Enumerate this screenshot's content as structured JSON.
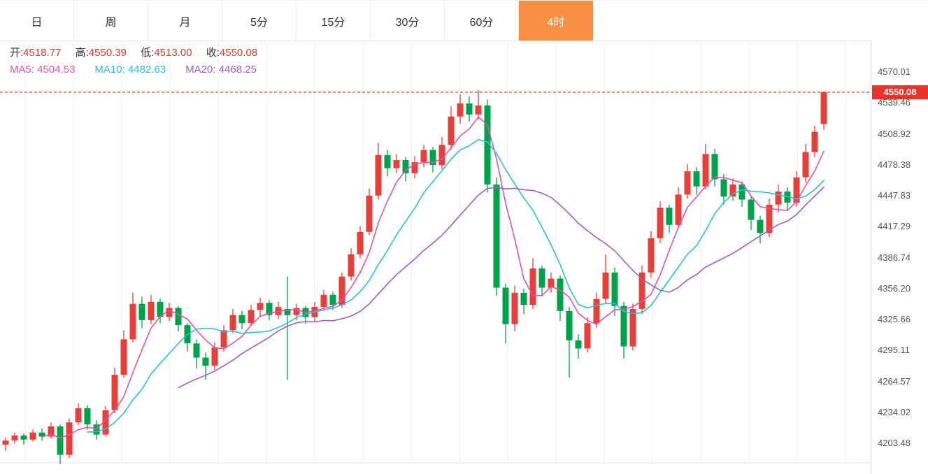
{
  "tabs": {
    "active_color": "#f78f44",
    "items": [
      {
        "label": "日",
        "active": false
      },
      {
        "label": "周",
        "active": false
      },
      {
        "label": "月",
        "active": false
      },
      {
        "label": "5分",
        "active": false
      },
      {
        "label": "15分",
        "active": false
      },
      {
        "label": "30分",
        "active": false
      },
      {
        "label": "60分",
        "active": false
      },
      {
        "label": "4时",
        "active": true
      }
    ]
  },
  "info": {
    "ohlc_value_color": "#e23b2e",
    "ohlc": [
      {
        "label": "开:",
        "value": "4518.77"
      },
      {
        "label": "高:",
        "value": "4550.39"
      },
      {
        "label": "低:",
        "value": "4513.00"
      },
      {
        "label": "收:",
        "value": "4550.08"
      }
    ],
    "ma": [
      {
        "label": "MA5:",
        "value": "4504.53",
        "color": "#e651a8"
      },
      {
        "label": "MA10:",
        "value": "4482.63",
        "color": "#2bbfd6"
      },
      {
        "label": "MA20:",
        "value": "4468.25",
        "color": "#9d5fc4"
      }
    ]
  },
  "axis": {
    "labels": [
      "4570.01",
      "4539.46",
      "4508.92",
      "4478.38",
      "4447.83",
      "4417.29",
      "4386.74",
      "4356.20",
      "4325.66",
      "4295.11",
      "4264.57",
      "4234.02",
      "4203.48"
    ]
  },
  "price_tag": {
    "value": "4550.08",
    "bg_color": "#e8352a"
  },
  "chart_data": {
    "type": "candlestick",
    "timeframe": "4时",
    "ylim": [
      4203.48,
      4570.01
    ],
    "y_ticks": [
      4570.01,
      4539.46,
      4508.92,
      4478.38,
      4447.83,
      4417.29,
      4386.74,
      4356.2,
      4325.66,
      4295.11,
      4264.57,
      4234.02,
      4203.48
    ],
    "grid": "vertical",
    "up_color": "#e7403a",
    "down_color": "#00a14b",
    "current_price": 4550.08,
    "current_price_line_color": "#e8352a",
    "last_candle": {
      "open": 4518.77,
      "high": 4550.39,
      "low": 4513.0,
      "close": 4550.08
    },
    "ma_series": [
      {
        "name": "MA5",
        "period": 5,
        "color": "#e651a8",
        "last_value": 4504.53
      },
      {
        "name": "MA10",
        "period": 10,
        "color": "#2bbfd6",
        "last_value": 4482.63
      },
      {
        "name": "MA20",
        "period": 20,
        "color": "#9d5fc4",
        "last_value": 4468.25
      }
    ],
    "candles_ohlc": [
      [
        4202,
        4209,
        4196,
        4206
      ],
      [
        4206,
        4214,
        4203,
        4211
      ],
      [
        4211,
        4213,
        4202,
        4207
      ],
      [
        4207,
        4217,
        4205,
        4214
      ],
      [
        4214,
        4218,
        4206,
        4210
      ],
      [
        4210,
        4224,
        4208,
        4220
      ],
      [
        4220,
        4222,
        4183,
        4192
      ],
      [
        4192,
        4228,
        4189,
        4224
      ],
      [
        4224,
        4243,
        4221,
        4238
      ],
      [
        4238,
        4241,
        4217,
        4222
      ],
      [
        4222,
        4226,
        4207,
        4212
      ],
      [
        4212,
        4240,
        4210,
        4236
      ],
      [
        4236,
        4278,
        4233,
        4271
      ],
      [
        4271,
        4315,
        4268,
        4306
      ],
      [
        4306,
        4352,
        4303,
        4341
      ],
      [
        4341,
        4348,
        4317,
        4325
      ],
      [
        4325,
        4350,
        4321,
        4343
      ],
      [
        4343,
        4346,
        4322,
        4328
      ],
      [
        4328,
        4342,
        4324,
        4337
      ],
      [
        4337,
        4339,
        4314,
        4320
      ],
      [
        4320,
        4322,
        4294,
        4302
      ],
      [
        4302,
        4306,
        4277,
        4288
      ],
      [
        4288,
        4293,
        4266,
        4280
      ],
      [
        4280,
        4303,
        4276,
        4298
      ],
      [
        4298,
        4320,
        4294,
        4315
      ],
      [
        4315,
        4336,
        4312,
        4330
      ],
      [
        4330,
        4334,
        4316,
        4322
      ],
      [
        4322,
        4340,
        4319,
        4335
      ],
      [
        4335,
        4347,
        4329,
        4342
      ],
      [
        4342,
        4345,
        4325,
        4330
      ],
      [
        4330,
        4343,
        4326,
        4338
      ],
      [
        4336,
        4368,
        4266,
        4330
      ],
      [
        4330,
        4341,
        4325,
        4337
      ],
      [
        4337,
        4339,
        4321,
        4328
      ],
      [
        4328,
        4343,
        4324,
        4338
      ],
      [
        4338,
        4355,
        4334,
        4350
      ],
      [
        4350,
        4353,
        4335,
        4340
      ],
      [
        4340,
        4372,
        4337,
        4368
      ],
      [
        4368,
        4396,
        4364,
        4390
      ],
      [
        4390,
        4418,
        4386,
        4412
      ],
      [
        4412,
        4455,
        4409,
        4448
      ],
      [
        4448,
        4500,
        4444,
        4488
      ],
      [
        4488,
        4493,
        4467,
        4475
      ],
      [
        4475,
        4489,
        4470,
        4483
      ],
      [
        4483,
        4486,
        4462,
        4470
      ],
      [
        4470,
        4487,
        4465,
        4481
      ],
      [
        4481,
        4498,
        4476,
        4493
      ],
      [
        4493,
        4496,
        4471,
        4478
      ],
      [
        4478,
        4506,
        4474,
        4498
      ],
      [
        4498,
        4536,
        4493,
        4526
      ],
      [
        4526,
        4548,
        4519,
        4539
      ],
      [
        4539,
        4546,
        4521,
        4528
      ],
      [
        4528,
        4552,
        4523,
        4537
      ],
      [
        4537,
        4543,
        4451,
        4459
      ],
      [
        4459,
        4466,
        4349,
        4357
      ],
      [
        4357,
        4361,
        4302,
        4321
      ],
      [
        4321,
        4359,
        4314,
        4352
      ],
      [
        4352,
        4356,
        4331,
        4340
      ],
      [
        4340,
        4386,
        4336,
        4376
      ],
      [
        4376,
        4379,
        4349,
        4357
      ],
      [
        4357,
        4372,
        4352,
        4366
      ],
      [
        4366,
        4369,
        4324,
        4334
      ],
      [
        4334,
        4338,
        4268,
        4305
      ],
      [
        4305,
        4311,
        4287,
        4297
      ],
      [
        4297,
        4328,
        4293,
        4322
      ],
      [
        4322,
        4352,
        4317,
        4346
      ],
      [
        4346,
        4390,
        4341,
        4372
      ],
      [
        4372,
        4377,
        4329,
        4339
      ],
      [
        4339,
        4343,
        4287,
        4299
      ],
      [
        4299,
        4341,
        4295,
        4336
      ],
      [
        4336,
        4379,
        4331,
        4372
      ],
      [
        4372,
        4413,
        4367,
        4406
      ],
      [
        4406,
        4442,
        4401,
        4436
      ],
      [
        4436,
        4439,
        4411,
        4419
      ],
      [
        4419,
        4456,
        4415,
        4449
      ],
      [
        4449,
        4479,
        4445,
        4472
      ],
      [
        4472,
        4476,
        4449,
        4457
      ],
      [
        4457,
        4499,
        4454,
        4489
      ],
      [
        4489,
        4494,
        4457,
        4464
      ],
      [
        4464,
        4469,
        4439,
        4447
      ],
      [
        4447,
        4465,
        4443,
        4459
      ],
      [
        4459,
        4462,
        4437,
        4444
      ],
      [
        4444,
        4448,
        4414,
        4424
      ],
      [
        4424,
        4428,
        4401,
        4411
      ],
      [
        4411,
        4445,
        4407,
        4439
      ],
      [
        4439,
        4459,
        4431,
        4452
      ],
      [
        4452,
        4456,
        4433,
        4441
      ],
      [
        4441,
        4472,
        4437,
        4466
      ],
      [
        4466,
        4499,
        4461,
        4491
      ],
      [
        4491,
        4517,
        4486,
        4511
      ],
      [
        4518.77,
        4550.39,
        4513.0,
        4550.08
      ]
    ]
  }
}
